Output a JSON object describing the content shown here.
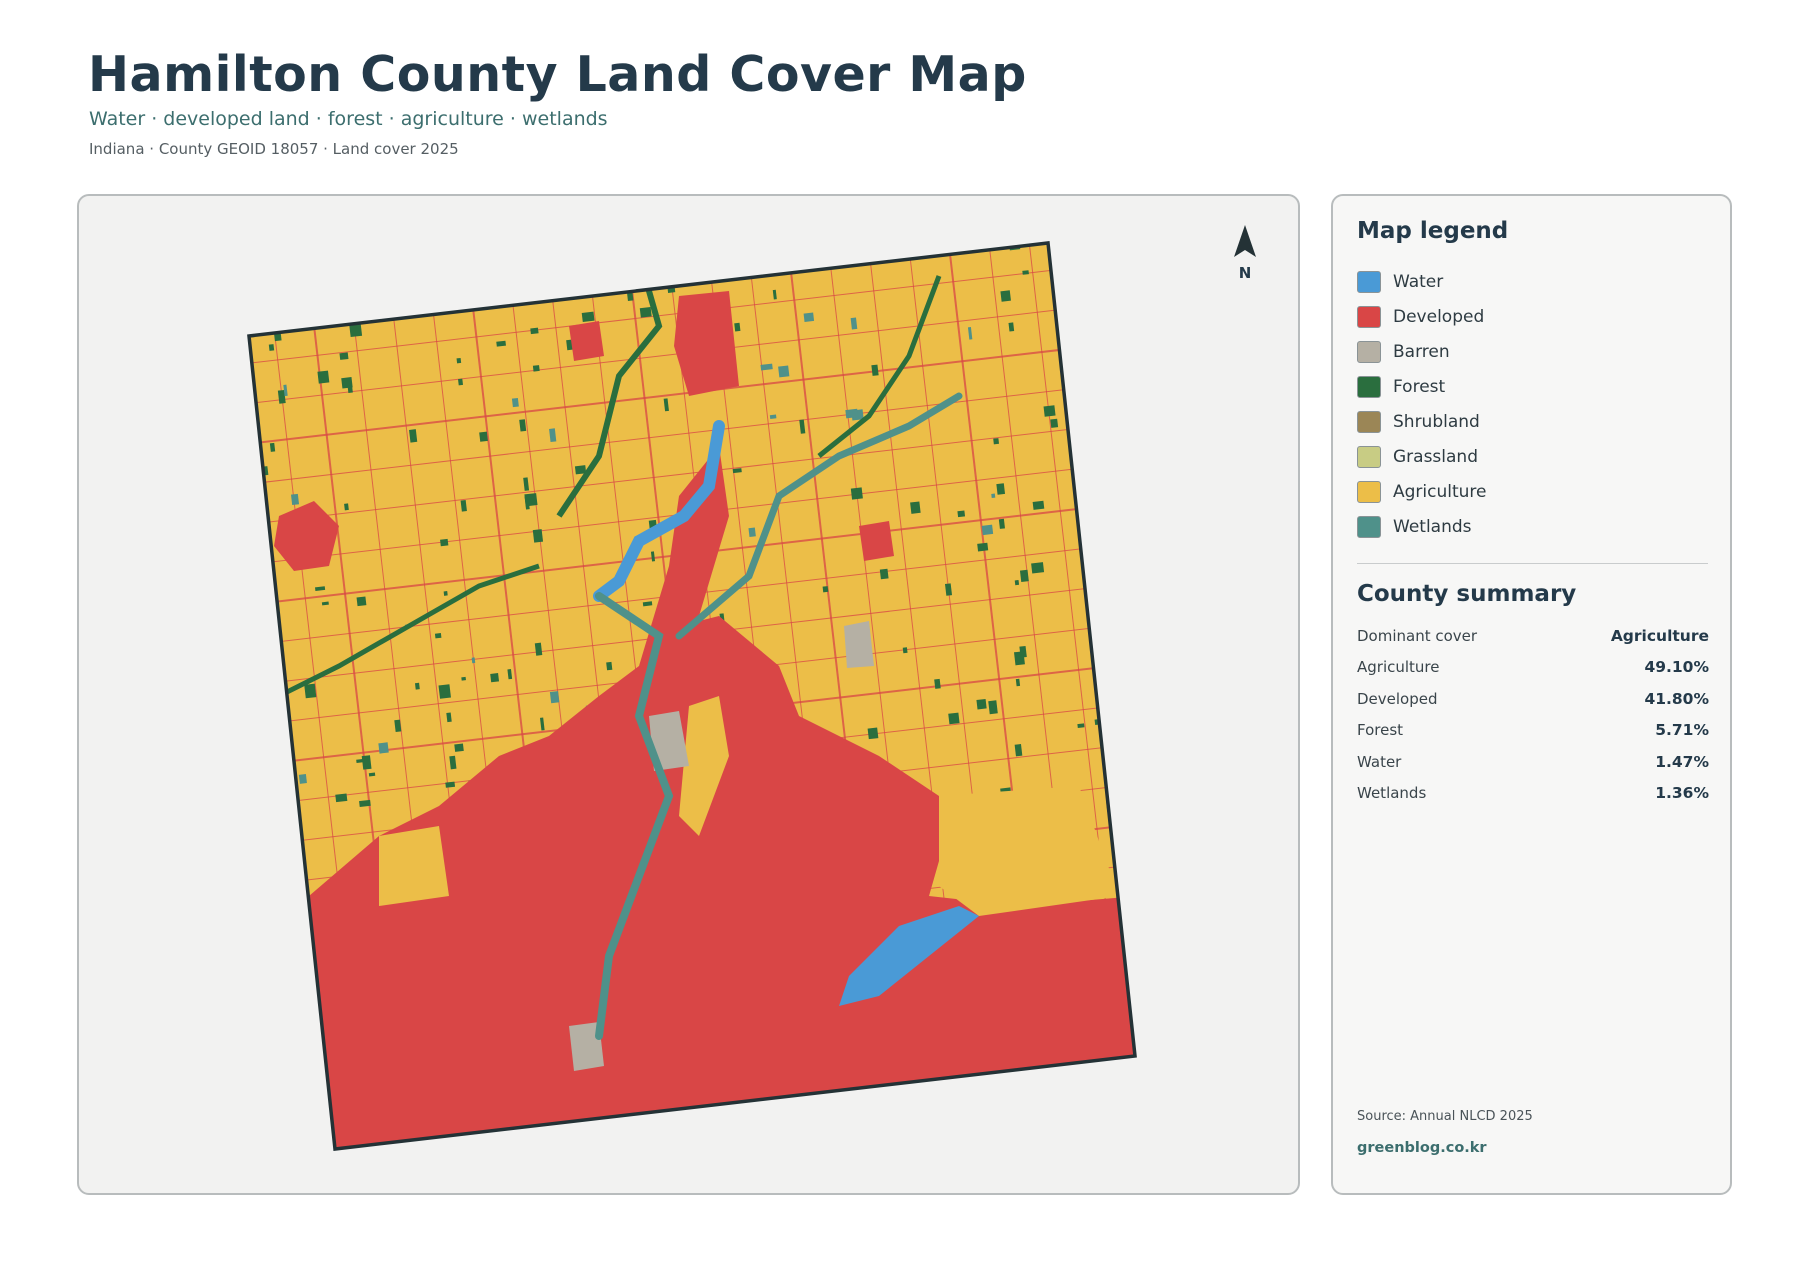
{
  "header": {
    "title": "Hamilton County Land Cover Map",
    "subtitle": "Water · developed land · forest · agriculture · wetlands",
    "meta": "Indiana · County GEOID 18057 · Land cover 2025"
  },
  "map": {
    "north_label": "N",
    "colors": {
      "water": "#4a9ad6",
      "developed": "#d94646",
      "barren": "#b5b0a4",
      "forest": "#2a6e3e",
      "shrubland": "#9b8656",
      "grassland": "#c8cc84",
      "agriculture": "#ecbe48",
      "wetlands": "#4f918a",
      "outline": "#243236",
      "panel_bg": "#f2f2f1"
    }
  },
  "legend": {
    "title": "Map legend",
    "items": [
      {
        "label": "Water",
        "color": "#4a9ad6"
      },
      {
        "label": "Developed",
        "color": "#d94646"
      },
      {
        "label": "Barren",
        "color": "#b5b0a4"
      },
      {
        "label": "Forest",
        "color": "#2a6e3e"
      },
      {
        "label": "Shrubland",
        "color": "#9b8656"
      },
      {
        "label": "Grassland",
        "color": "#c8cc84"
      },
      {
        "label": "Agriculture",
        "color": "#ecbe48"
      },
      {
        "label": "Wetlands",
        "color": "#4f918a"
      }
    ]
  },
  "summary": {
    "title": "County summary",
    "rows": [
      {
        "label": "Dominant cover",
        "value": "Agriculture"
      },
      {
        "label": "Agriculture",
        "value": "49.10%"
      },
      {
        "label": "Developed",
        "value": "41.80%"
      },
      {
        "label": "Forest",
        "value": "5.71%"
      },
      {
        "label": "Water",
        "value": "1.47%"
      },
      {
        "label": "Wetlands",
        "value": "1.36%"
      }
    ]
  },
  "footer": {
    "source": "Source: Annual NLCD 2025",
    "site": "greenblog.co.kr"
  }
}
